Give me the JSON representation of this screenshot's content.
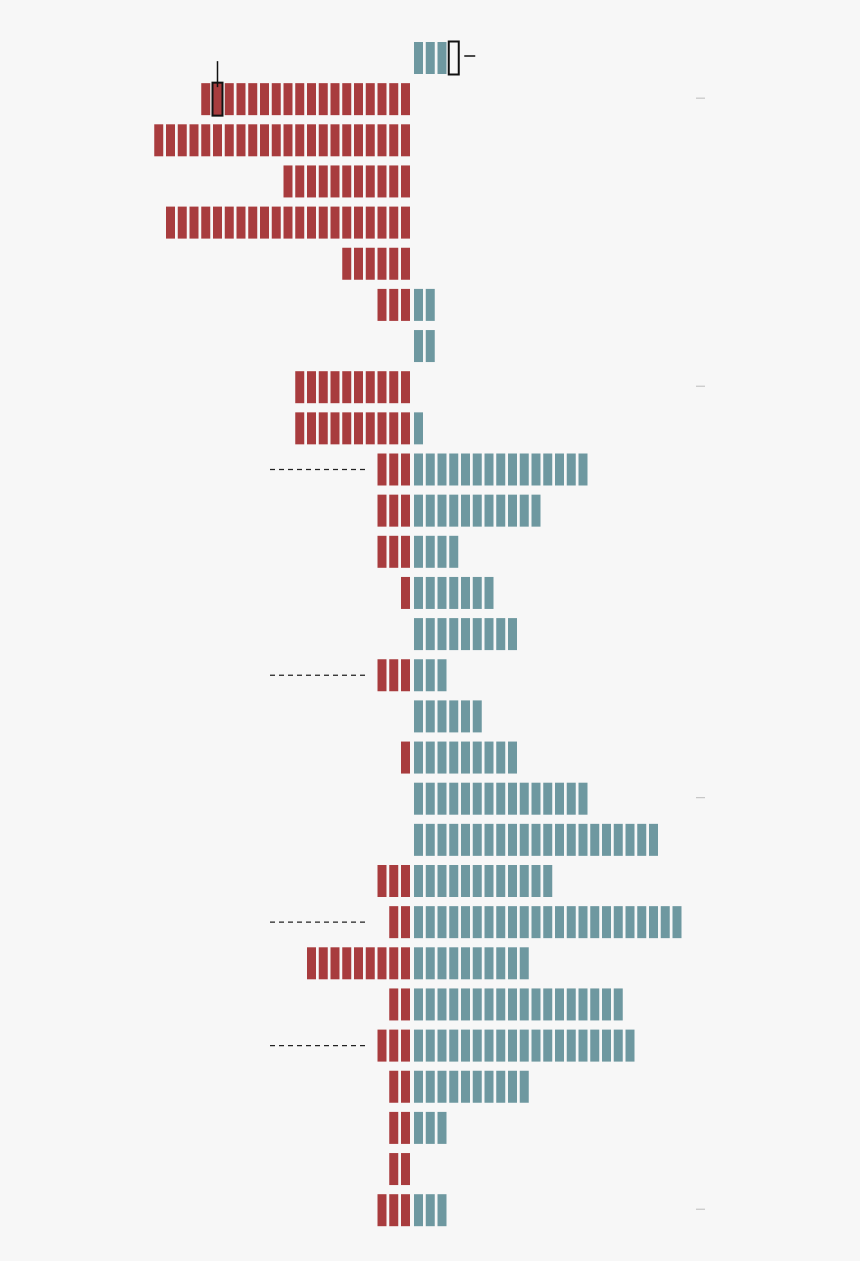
{
  "colors": {
    "background": "#f7f7f7",
    "negative": "#a83c3e",
    "positive": "#6e98a0",
    "annotation": "#222222",
    "tick": "#bbbbbb"
  },
  "chart_data": {
    "type": "bar",
    "orientation": "horizontal-diverging",
    "unit_style": "stacked unit blocks",
    "title": "",
    "xlabel": "",
    "ylabel": "",
    "series": [
      {
        "name": "left",
        "color_key": "negative",
        "values": [
          0,
          18,
          22,
          11,
          21,
          6,
          3,
          0,
          10,
          10,
          3,
          3,
          3,
          1,
          0,
          3,
          0,
          1,
          0,
          0,
          3,
          2,
          9,
          2,
          3,
          2,
          2,
          2,
          3
        ]
      },
      {
        "name": "right",
        "color_key": "positive",
        "values": [
          3,
          0,
          0,
          0,
          0,
          0,
          2,
          2,
          0,
          1,
          15,
          11,
          4,
          7,
          9,
          3,
          6,
          9,
          15,
          21,
          12,
          23,
          10,
          18,
          19,
          10,
          3,
          0,
          3
        ]
      }
    ],
    "rows": 29,
    "highlights": [
      {
        "row": 0,
        "series": "right",
        "unit": 3
      },
      {
        "row": 1,
        "series": "left",
        "unit": 16
      }
    ],
    "dashed_markers": [
      10,
      15,
      21,
      24
    ],
    "tick_marks": [
      1,
      8,
      18,
      28
    ]
  }
}
